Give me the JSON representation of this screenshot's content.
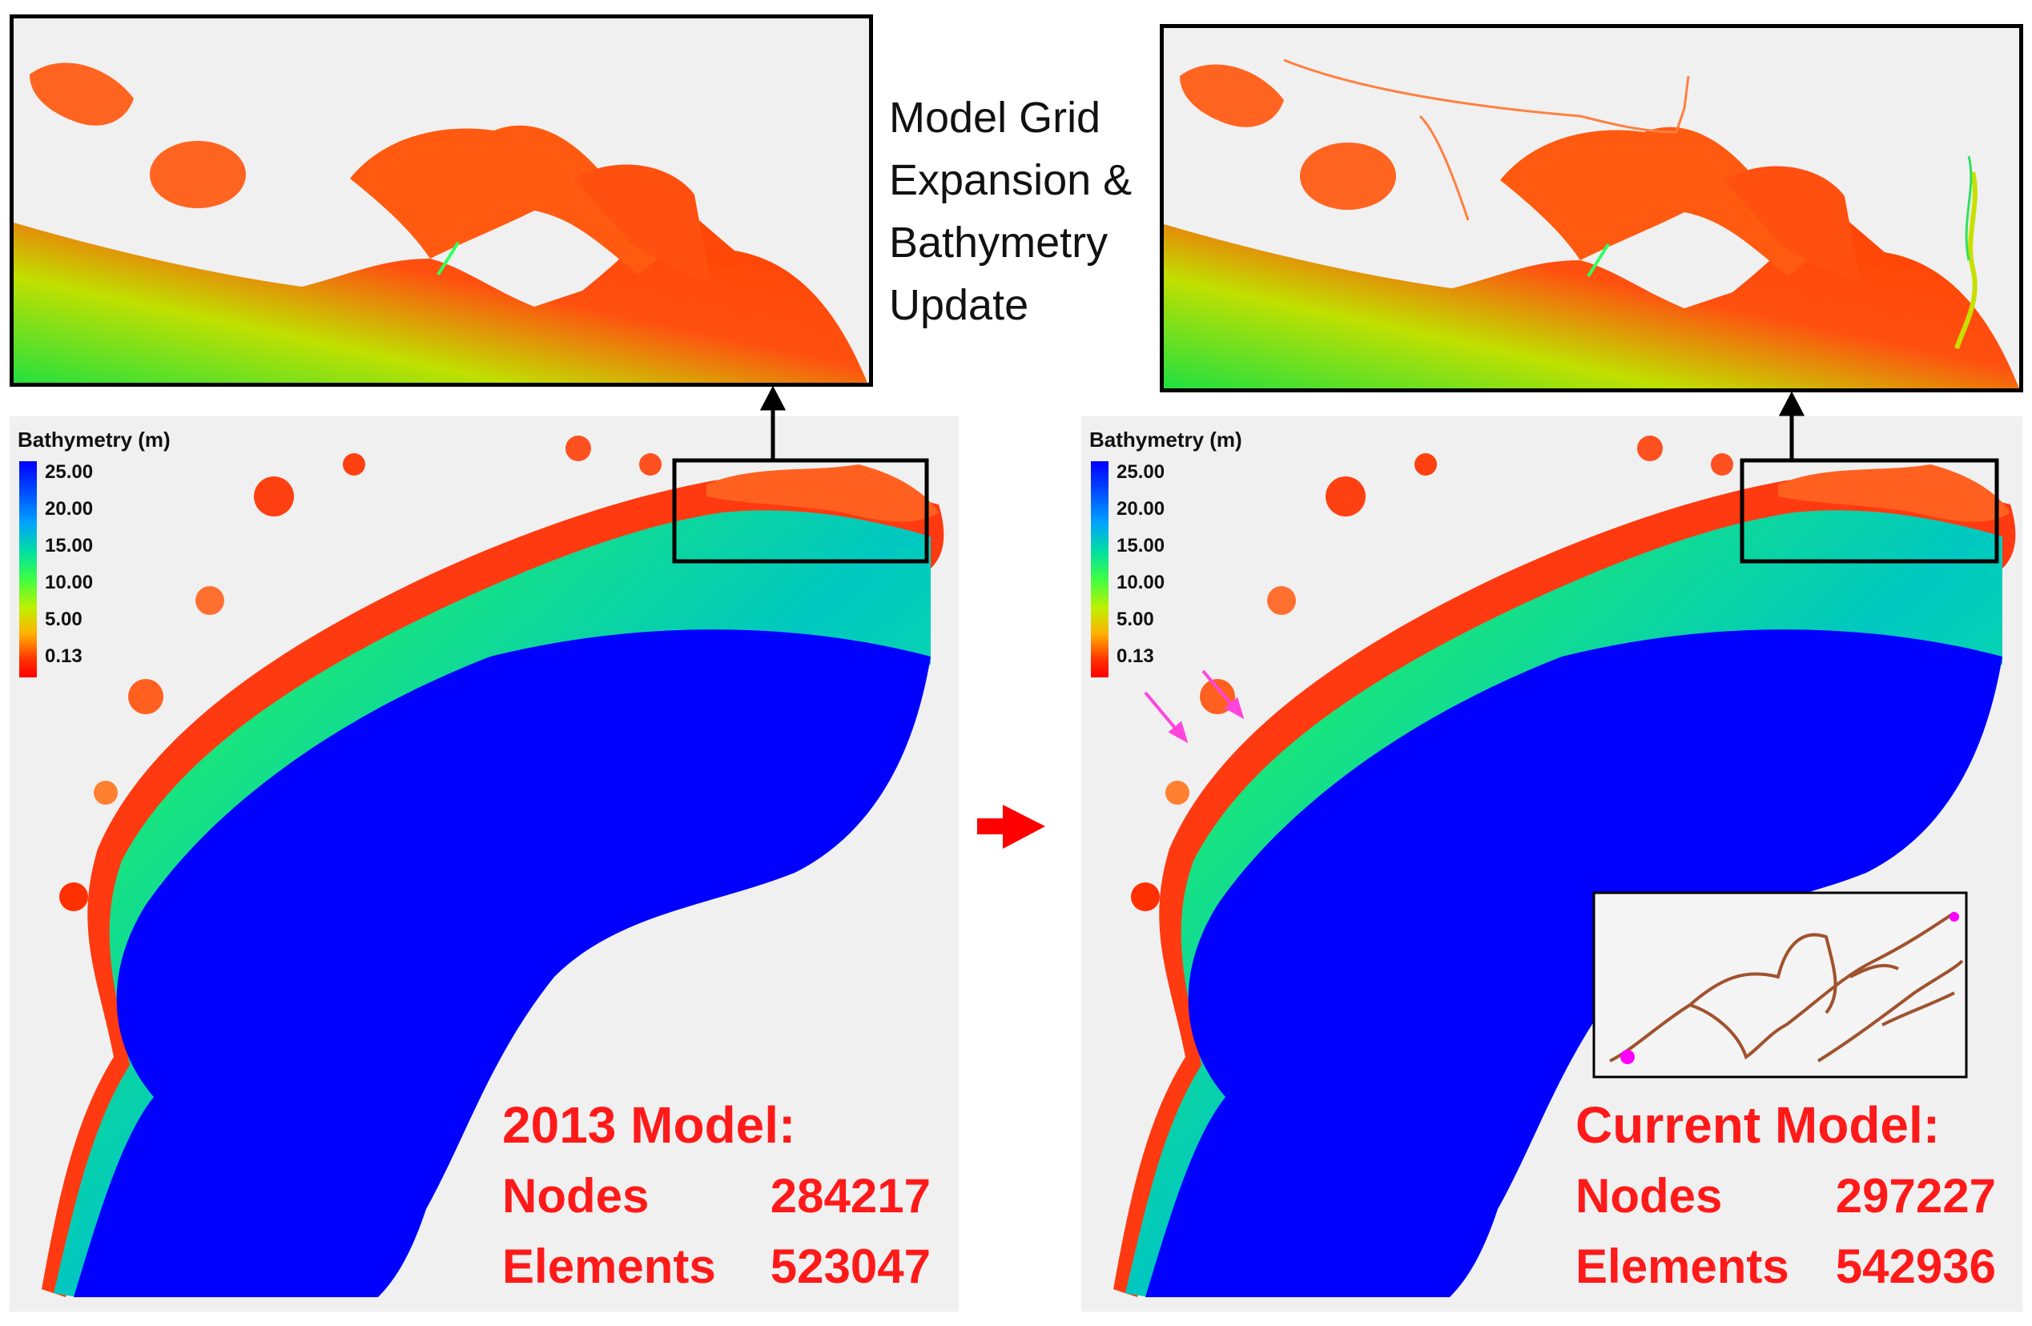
{
  "caption": {
    "line1": "Model Grid",
    "line2": "Expansion &",
    "line3": "Bathymetry",
    "line4": "Update"
  },
  "legend": {
    "title": "Bathymetry (m)",
    "ticks": [
      "25.00",
      "20.00",
      "15.00",
      "10.00",
      "5.00",
      "0.13"
    ]
  },
  "models": [
    {
      "title": "2013 Model:",
      "nodes_label": "Nodes",
      "nodes": "284217",
      "elements_label": "Elements",
      "elements": "523047"
    },
    {
      "title": "Current Model:",
      "nodes_label": "Nodes",
      "nodes": "297227",
      "elements_label": "Elements",
      "elements": "542936"
    }
  ],
  "colors": {
    "deep": "#0000ff",
    "shallow": "#ff3300",
    "stats_text": "#ff1a1a",
    "arrow": "#ff0000",
    "annotation_arrow": "#ff44dd",
    "outline": "#a0522d"
  }
}
